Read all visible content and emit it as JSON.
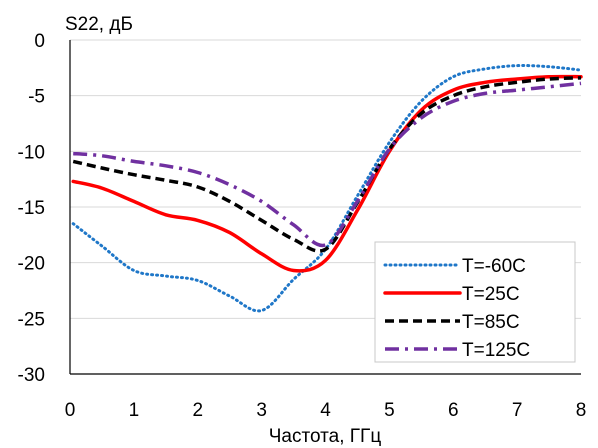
{
  "chart_data": {
    "type": "line",
    "ylabel": "S22, дБ",
    "xlabel": "Частота, ГГц",
    "xlim": [
      0,
      8
    ],
    "ylim": [
      -30,
      0
    ],
    "xticks": [
      0,
      1,
      2,
      3,
      4,
      5,
      6,
      7,
      8
    ],
    "yticks": [
      0,
      -5,
      -10,
      -15,
      -20,
      -25,
      -30
    ],
    "grid": "horizontal",
    "legend": "bottom-right",
    "series": [
      {
        "name": "T=-60C",
        "color": "#1f77c8",
        "style": "dotted",
        "points": [
          [
            0.05,
            -16.5
          ],
          [
            0.5,
            -18.5
          ],
          [
            1,
            -20.7
          ],
          [
            1.5,
            -21.2
          ],
          [
            2,
            -21.6
          ],
          [
            2.5,
            -23
          ],
          [
            3,
            -24.3
          ],
          [
            3.5,
            -21.5
          ],
          [
            4,
            -18.8
          ],
          [
            4.5,
            -14
          ],
          [
            5,
            -9.2
          ],
          [
            5.5,
            -5.5
          ],
          [
            6,
            -3.3
          ],
          [
            6.5,
            -2.6
          ],
          [
            7,
            -2.3
          ],
          [
            7.5,
            -2.4
          ],
          [
            8,
            -2.7
          ]
        ]
      },
      {
        "name": "T=25C",
        "color": "#ff0000",
        "style": "solid",
        "points": [
          [
            0.05,
            -12.7
          ],
          [
            0.5,
            -13.3
          ],
          [
            1,
            -14.5
          ],
          [
            1.5,
            -15.7
          ],
          [
            2,
            -16.2
          ],
          [
            2.5,
            -17.3
          ],
          [
            3,
            -19.2
          ],
          [
            3.5,
            -20.7
          ],
          [
            4,
            -19.8
          ],
          [
            4.5,
            -15.3
          ],
          [
            5,
            -10
          ],
          [
            5.5,
            -6.3
          ],
          [
            6,
            -4.5
          ],
          [
            6.5,
            -3.8
          ],
          [
            7,
            -3.5
          ],
          [
            7.5,
            -3.3
          ],
          [
            8,
            -3.3
          ]
        ]
      },
      {
        "name": "T=85C",
        "color": "#000000",
        "style": "dashed",
        "points": [
          [
            0.05,
            -10.9
          ],
          [
            0.5,
            -11.5
          ],
          [
            1,
            -12.1
          ],
          [
            1.5,
            -12.6
          ],
          [
            2,
            -13.2
          ],
          [
            2.5,
            -14.5
          ],
          [
            3,
            -16.2
          ],
          [
            3.5,
            -17.9
          ],
          [
            4,
            -18.8
          ],
          [
            4.5,
            -14.6
          ],
          [
            5,
            -9.8
          ],
          [
            5.5,
            -6.6
          ],
          [
            6,
            -5
          ],
          [
            6.5,
            -4.2
          ],
          [
            7,
            -3.8
          ],
          [
            7.5,
            -3.5
          ],
          [
            8,
            -3.4
          ]
        ]
      },
      {
        "name": "T=125C",
        "color": "#7030a0",
        "style": "dashdot",
        "points": [
          [
            0.05,
            -10.2
          ],
          [
            0.5,
            -10.4
          ],
          [
            1,
            -10.9
          ],
          [
            1.5,
            -11.3
          ],
          [
            2,
            -11.9
          ],
          [
            2.5,
            -13
          ],
          [
            3,
            -14.5
          ],
          [
            3.5,
            -16.6
          ],
          [
            4,
            -18.4
          ],
          [
            4.5,
            -14.5
          ],
          [
            5,
            -9.8
          ],
          [
            5.5,
            -7
          ],
          [
            6,
            -5.5
          ],
          [
            6.5,
            -4.8
          ],
          [
            7,
            -4.5
          ],
          [
            7.5,
            -4.2
          ],
          [
            8,
            -3.9
          ]
        ]
      }
    ]
  }
}
